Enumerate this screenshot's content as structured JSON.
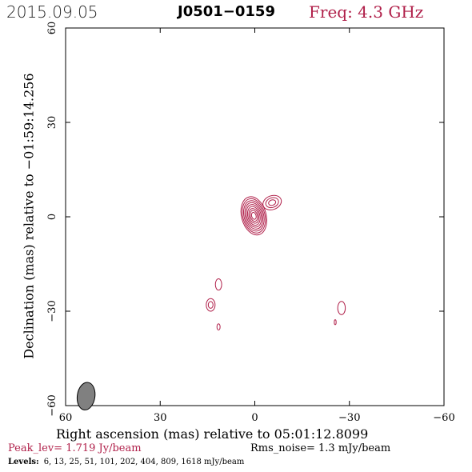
{
  "header": {
    "date": "2015.09.05",
    "source": "J0501−0159",
    "freq": "Freq: 4.3 GHz"
  },
  "footer": {
    "peak": "Peak_lev=  1.719 Jy/beam",
    "rms": "Rms_noise=  1.3 mJy/beam",
    "levels_title": "Levels:",
    "levels": "6,  13,  25,  51, 101, 202, 404, 809, 1618 mJy/beam"
  },
  "colors": {
    "contour": "#b0204a",
    "axes": "#000000",
    "beam_fill": "#808080"
  },
  "chart_data": {
    "type": "contour",
    "xlabel": "Right ascension (mas) relative to 05:01:12.8099",
    "ylabel": "Declination (mas) relative to −01:59:14.256",
    "xlim": [
      60,
      -60
    ],
    "ylim": [
      -60,
      60
    ],
    "x_ticks": [
      60,
      30,
      0,
      -30,
      -60
    ],
    "y_ticks": [
      -60,
      -30,
      0,
      30,
      60
    ],
    "x_tick_labels": [
      "60",
      "30",
      "0",
      "−30",
      "−60"
    ],
    "y_tick_labels": [
      "−60",
      "−30",
      "0",
      "30",
      "60"
    ],
    "contour_levels_mJy": [
      6,
      13,
      25,
      51,
      101,
      202,
      404,
      809,
      1618
    ],
    "peak_Jy_per_beam": 1.719,
    "rms_mJy_per_beam": 1.3,
    "components": [
      {
        "name": "core",
        "x": 0.3,
        "y": 0.3,
        "rx": 3.9,
        "ry": 6.2,
        "angle": -15,
        "rings": 9
      },
      {
        "name": "jet-knot",
        "x": -5.5,
        "y": 4.5,
        "rx": 3.0,
        "ry": 2.2,
        "angle": -20,
        "rings": 3
      },
      {
        "name": "blob-a",
        "x": 11.5,
        "y": -21.5,
        "rx": 1.0,
        "ry": 1.8,
        "angle": 0,
        "rings": 1
      },
      {
        "name": "blob-b",
        "x": 14.0,
        "y": -28.0,
        "rx": 1.4,
        "ry": 2.0,
        "angle": 0,
        "rings": 2
      },
      {
        "name": "blob-c",
        "x": 11.5,
        "y": -35.0,
        "rx": 0.5,
        "ry": 1.0,
        "angle": 0,
        "rings": 1
      },
      {
        "name": "blob-d",
        "x": -27.5,
        "y": -29.0,
        "rx": 1.2,
        "ry": 2.1,
        "angle": 0,
        "rings": 1
      },
      {
        "name": "blob-e",
        "x": -25.5,
        "y": -33.5,
        "rx": 0.3,
        "ry": 0.8,
        "angle": 0,
        "rings": 1
      }
    ],
    "beam": {
      "x": 53.5,
      "y": -57.0,
      "major": 4.4,
      "minor": 2.8,
      "angle": 8
    }
  }
}
